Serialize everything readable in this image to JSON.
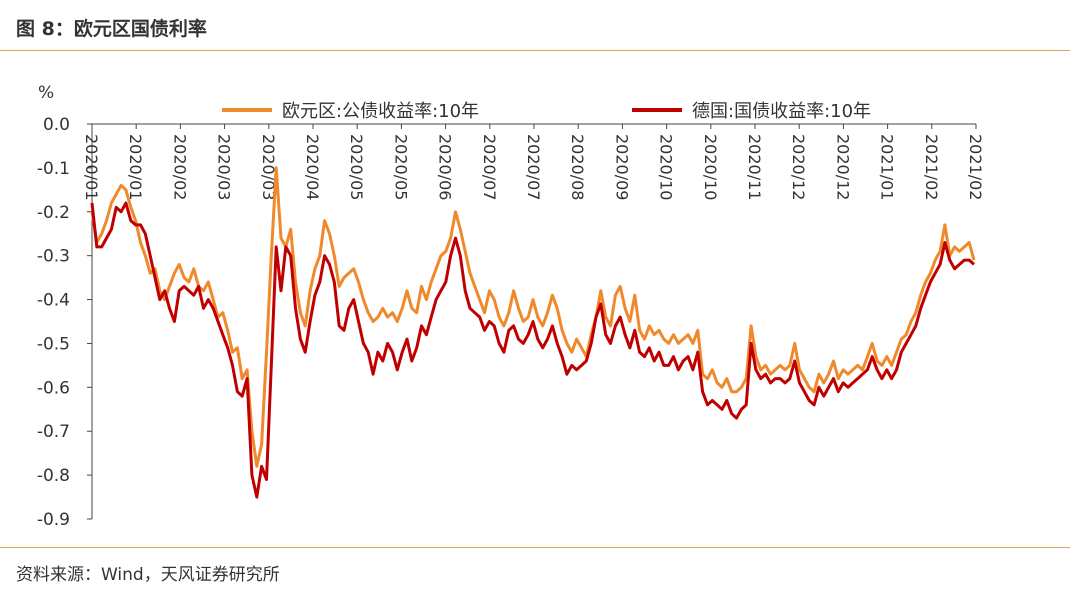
{
  "header": {
    "title": "图 8：欧元区国债利率"
  },
  "footer": {
    "source": "资料来源：Wind，天风证券研究所"
  },
  "colors": {
    "rule": "#e8a058",
    "series_eu": "#f0892c",
    "series_de": "#c00000"
  },
  "chart_data": {
    "type": "line",
    "title": "",
    "ylabel": "%",
    "xlabel": "",
    "ylim": [
      -0.9,
      0.0
    ],
    "yticks": [
      "0.0",
      "-0.1",
      "-0.2",
      "-0.3",
      "-0.4",
      "-0.5",
      "-0.6",
      "-0.7",
      "-0.8",
      "-0.9"
    ],
    "x_tick_labels": [
      "2020/01",
      "2020/01",
      "2020/02",
      "2020/03",
      "2020/03",
      "2020/04",
      "2020/05",
      "2020/05",
      "2020/06",
      "2020/07",
      "2020/07",
      "2020/08",
      "2020/09",
      "2020/10",
      "2020/10",
      "2020/11",
      "2020/12",
      "2020/12",
      "2021/01",
      "2021/02",
      "2021/02"
    ],
    "legend_position": "top",
    "grid": false,
    "series": [
      {
        "name": "欧元区:公债收益率:10年",
        "values": [
          -0.2,
          -0.27,
          -0.25,
          -0.22,
          -0.18,
          -0.16,
          -0.14,
          -0.15,
          -0.19,
          -0.22,
          -0.27,
          -0.3,
          -0.34,
          -0.33,
          -0.38,
          -0.4,
          -0.37,
          -0.34,
          -0.32,
          -0.35,
          -0.36,
          -0.33,
          -0.37,
          -0.38,
          -0.36,
          -0.4,
          -0.44,
          -0.43,
          -0.47,
          -0.52,
          -0.51,
          -0.58,
          -0.56,
          -0.7,
          -0.78,
          -0.73,
          -0.52,
          -0.3,
          -0.1,
          -0.26,
          -0.28,
          -0.24,
          -0.36,
          -0.43,
          -0.46,
          -0.38,
          -0.33,
          -0.3,
          -0.22,
          -0.25,
          -0.3,
          -0.37,
          -0.35,
          -0.34,
          -0.33,
          -0.36,
          -0.4,
          -0.43,
          -0.45,
          -0.44,
          -0.42,
          -0.44,
          -0.43,
          -0.45,
          -0.42,
          -0.38,
          -0.42,
          -0.43,
          -0.37,
          -0.4,
          -0.36,
          -0.33,
          -0.3,
          -0.29,
          -0.26,
          -0.2,
          -0.24,
          -0.29,
          -0.34,
          -0.37,
          -0.4,
          -0.43,
          -0.38,
          -0.4,
          -0.44,
          -0.46,
          -0.43,
          -0.38,
          -0.42,
          -0.45,
          -0.44,
          -0.4,
          -0.44,
          -0.46,
          -0.43,
          -0.39,
          -0.42,
          -0.47,
          -0.5,
          -0.52,
          -0.49,
          -0.51,
          -0.53,
          -0.48,
          -0.44,
          -0.38,
          -0.44,
          -0.46,
          -0.39,
          -0.37,
          -0.42,
          -0.45,
          -0.39,
          -0.47,
          -0.49,
          -0.46,
          -0.48,
          -0.47,
          -0.49,
          -0.5,
          -0.48,
          -0.5,
          -0.49,
          -0.48,
          -0.5,
          -0.47,
          -0.57,
          -0.58,
          -0.56,
          -0.59,
          -0.6,
          -0.58,
          -0.61,
          -0.61,
          -0.6,
          -0.58,
          -0.46,
          -0.53,
          -0.56,
          -0.55,
          -0.57,
          -0.56,
          -0.55,
          -0.56,
          -0.55,
          -0.5,
          -0.56,
          -0.58,
          -0.6,
          -0.61,
          -0.57,
          -0.59,
          -0.57,
          -0.54,
          -0.58,
          -0.56,
          -0.57,
          -0.56,
          -0.55,
          -0.56,
          -0.53,
          -0.5,
          -0.54,
          -0.55,
          -0.53,
          -0.55,
          -0.52,
          -0.49,
          -0.48,
          -0.45,
          -0.43,
          -0.39,
          -0.36,
          -0.34,
          -0.31,
          -0.29,
          -0.23,
          -0.3,
          -0.28,
          -0.29,
          -0.28,
          -0.27,
          -0.31
        ]
      },
      {
        "name": "德国:国债收益率:10年",
        "values": [
          -0.18,
          -0.28,
          -0.28,
          -0.26,
          -0.24,
          -0.19,
          -0.2,
          -0.18,
          -0.22,
          -0.23,
          -0.23,
          -0.25,
          -0.3,
          -0.35,
          -0.4,
          -0.38,
          -0.42,
          -0.45,
          -0.38,
          -0.37,
          -0.38,
          -0.39,
          -0.37,
          -0.42,
          -0.4,
          -0.42,
          -0.45,
          -0.48,
          -0.51,
          -0.55,
          -0.61,
          -0.62,
          -0.58,
          -0.8,
          -0.85,
          -0.78,
          -0.81,
          -0.55,
          -0.28,
          -0.38,
          -0.28,
          -0.3,
          -0.42,
          -0.49,
          -0.52,
          -0.45,
          -0.39,
          -0.36,
          -0.3,
          -0.32,
          -0.36,
          -0.46,
          -0.47,
          -0.42,
          -0.4,
          -0.45,
          -0.5,
          -0.52,
          -0.57,
          -0.52,
          -0.54,
          -0.5,
          -0.52,
          -0.56,
          -0.52,
          -0.49,
          -0.54,
          -0.51,
          -0.46,
          -0.48,
          -0.44,
          -0.4,
          -0.38,
          -0.36,
          -0.3,
          -0.26,
          -0.3,
          -0.38,
          -0.42,
          -0.43,
          -0.44,
          -0.47,
          -0.45,
          -0.46,
          -0.5,
          -0.52,
          -0.47,
          -0.46,
          -0.49,
          -0.5,
          -0.48,
          -0.45,
          -0.49,
          -0.51,
          -0.49,
          -0.46,
          -0.5,
          -0.53,
          -0.57,
          -0.55,
          -0.56,
          -0.55,
          -0.54,
          -0.5,
          -0.44,
          -0.41,
          -0.48,
          -0.5,
          -0.46,
          -0.44,
          -0.48,
          -0.51,
          -0.47,
          -0.52,
          -0.53,
          -0.51,
          -0.54,
          -0.52,
          -0.55,
          -0.55,
          -0.53,
          -0.56,
          -0.54,
          -0.53,
          -0.56,
          -0.52,
          -0.61,
          -0.64,
          -0.63,
          -0.64,
          -0.65,
          -0.63,
          -0.66,
          -0.67,
          -0.65,
          -0.64,
          -0.5,
          -0.56,
          -0.58,
          -0.57,
          -0.59,
          -0.58,
          -0.58,
          -0.59,
          -0.58,
          -0.54,
          -0.59,
          -0.61,
          -0.63,
          -0.64,
          -0.6,
          -0.62,
          -0.6,
          -0.58,
          -0.61,
          -0.59,
          -0.6,
          -0.59,
          -0.58,
          -0.57,
          -0.56,
          -0.53,
          -0.56,
          -0.58,
          -0.56,
          -0.58,
          -0.56,
          -0.52,
          -0.5,
          -0.48,
          -0.46,
          -0.42,
          -0.39,
          -0.36,
          -0.34,
          -0.32,
          -0.27,
          -0.31,
          -0.33,
          -0.32,
          -0.31,
          -0.31,
          -0.32
        ]
      }
    ]
  }
}
